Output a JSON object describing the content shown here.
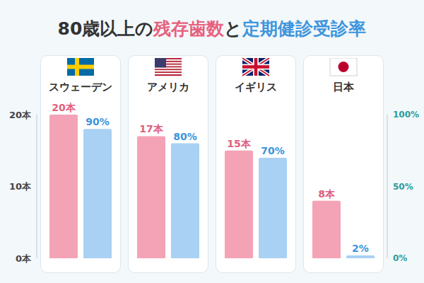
{
  "chart_data": {
    "type": "bar",
    "title": "80歳以上の残存歯数と定期健診受診率",
    "categories": [
      "スウェーデン",
      "アメリカ",
      "イギリス",
      "日本"
    ],
    "series": [
      {
        "name": "残存歯数",
        "color": "#f4a3b6",
        "values": [
          20,
          17,
          15,
          8
        ],
        "value_labels": [
          "20本",
          "17本",
          "15本",
          "8本"
        ]
      },
      {
        "name": "定期健診受診率",
        "color": "#a9d1f3",
        "axis": "y2",
        "values": [
          90,
          80,
          70,
          2
        ],
        "value_labels": [
          "90%",
          "80%",
          "70%",
          "2%"
        ]
      }
    ],
    "ylim": [
      0,
      20
    ],
    "yticks": [
      {
        "value": 0,
        "label": "0本"
      },
      {
        "value": 10,
        "label": "10本"
      },
      {
        "value": 20,
        "label": "20本"
      }
    ],
    "y2lim": [
      0,
      100
    ],
    "y2ticks": [
      {
        "value": 0,
        "label": "0%"
      },
      {
        "value": 50,
        "label": "50%"
      },
      {
        "value": 100,
        "label": "100%"
      }
    ],
    "data_labels": true,
    "grid": false
  }
}
